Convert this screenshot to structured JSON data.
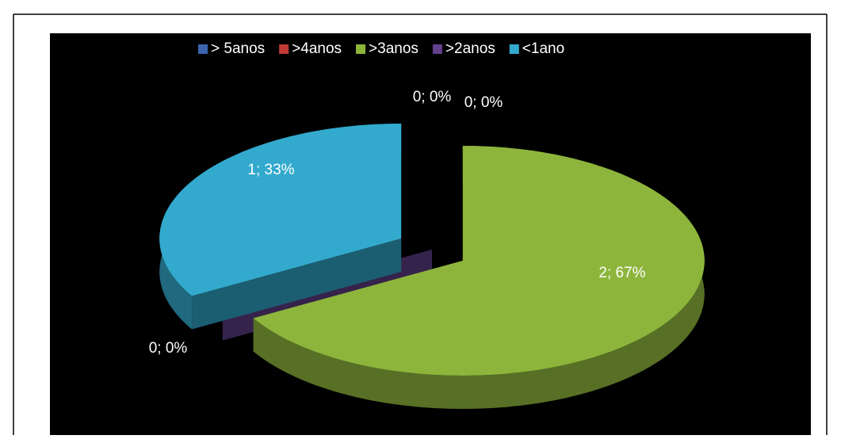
{
  "chart_data": {
    "type": "pie",
    "categories": [
      "> 5anos",
      ">4anos",
      ">3anos",
      ">2anos",
      "<1ano"
    ],
    "values": [
      0,
      0,
      2,
      0,
      1
    ],
    "value_labels": [
      "0; 0%",
      "0; 0%",
      "2; 67%",
      "0; 0%",
      "1; 33%"
    ],
    "colors": [
      "#3b64ad",
      "#c23a36",
      "#8db53c",
      "#62408a",
      "#33aacd"
    ],
    "legend": "top"
  }
}
